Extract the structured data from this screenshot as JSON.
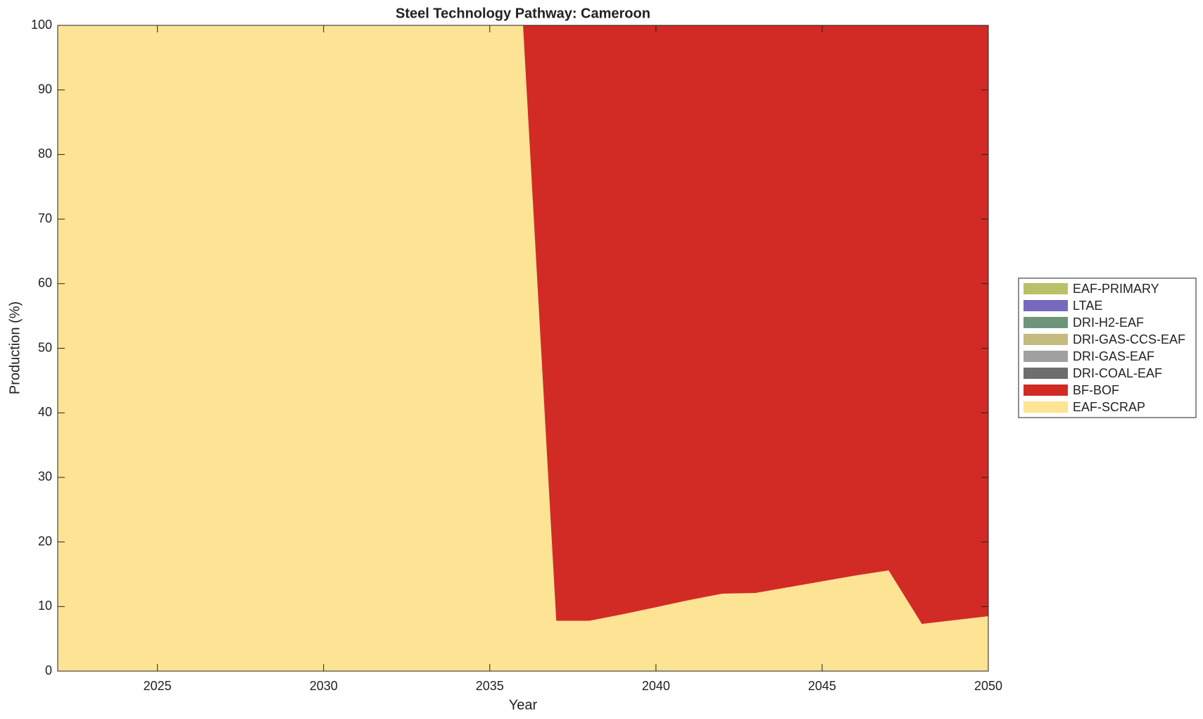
{
  "chart_data": {
    "type": "stacked_area",
    "title": "Steel Technology Pathway: Cameroon",
    "x_label": "Year",
    "y_label": "Production (%)",
    "x": [
      2022,
      2023,
      2024,
      2025,
      2026,
      2027,
      2028,
      2029,
      2030,
      2031,
      2032,
      2033,
      2034,
      2035,
      2036,
      2037,
      2038,
      2039,
      2040,
      2041,
      2042,
      2043,
      2044,
      2045,
      2046,
      2047,
      2048,
      2049,
      2050
    ],
    "xlim": [
      2022,
      2050
    ],
    "xticks": [
      2025,
      2030,
      2035,
      2040,
      2045,
      2050
    ],
    "ylim": [
      0,
      100
    ],
    "yticks": [
      0,
      10,
      20,
      30,
      40,
      50,
      60,
      70,
      80,
      90,
      100
    ],
    "grid": false,
    "legend_position": "right",
    "series": [
      {
        "name": "EAF-SCRAP",
        "color": "#fde394",
        "values": [
          100,
          100,
          100,
          100,
          100,
          100,
          100,
          100,
          100,
          100,
          100,
          100,
          100,
          100,
          100,
          7.8,
          7.8,
          8.8,
          9.9,
          11,
          12,
          12.1,
          13,
          13.9,
          14.8,
          15.6,
          7.3,
          7.9,
          8.5
        ]
      },
      {
        "name": "BF-BOF",
        "color": "#d22b25",
        "values": [
          0,
          0,
          0,
          0,
          0,
          0,
          0,
          0,
          0,
          0,
          0,
          0,
          0,
          0,
          0,
          92.2,
          92.2,
          91.2,
          90.1,
          89,
          88,
          87.9,
          87,
          86.1,
          85.2,
          84.4,
          92.7,
          92.1,
          91.5
        ]
      },
      {
        "name": "DRI-COAL-EAF",
        "color": "#6e6e6e",
        "values": [
          0,
          0,
          0,
          0,
          0,
          0,
          0,
          0,
          0,
          0,
          0,
          0,
          0,
          0,
          0,
          0,
          0,
          0,
          0,
          0,
          0,
          0,
          0,
          0,
          0,
          0,
          0,
          0,
          0
        ]
      },
      {
        "name": "DRI-GAS-EAF",
        "color": "#a0a0a0",
        "values": [
          0,
          0,
          0,
          0,
          0,
          0,
          0,
          0,
          0,
          0,
          0,
          0,
          0,
          0,
          0,
          0,
          0,
          0,
          0,
          0,
          0,
          0,
          0,
          0,
          0,
          0,
          0,
          0,
          0
        ]
      },
      {
        "name": "DRI-GAS-CCS-EAF",
        "color": "#c4bb7e",
        "values": [
          0,
          0,
          0,
          0,
          0,
          0,
          0,
          0,
          0,
          0,
          0,
          0,
          0,
          0,
          0,
          0,
          0,
          0,
          0,
          0,
          0,
          0,
          0,
          0,
          0,
          0,
          0,
          0,
          0
        ]
      },
      {
        "name": "DRI-H2-EAF",
        "color": "#6f947a",
        "values": [
          0,
          0,
          0,
          0,
          0,
          0,
          0,
          0,
          0,
          0,
          0,
          0,
          0,
          0,
          0,
          0,
          0,
          0,
          0,
          0,
          0,
          0,
          0,
          0,
          0,
          0,
          0,
          0,
          0
        ]
      },
      {
        "name": "LTAE",
        "color": "#7669bd",
        "values": [
          0,
          0,
          0,
          0,
          0,
          0,
          0,
          0,
          0,
          0,
          0,
          0,
          0,
          0,
          0,
          0,
          0,
          0,
          0,
          0,
          0,
          0,
          0,
          0,
          0,
          0,
          0,
          0,
          0
        ]
      },
      {
        "name": "EAF-PRIMARY",
        "color": "#b9c168",
        "values": [
          0,
          0,
          0,
          0,
          0,
          0,
          0,
          0,
          0,
          0,
          0,
          0,
          0,
          0,
          0,
          0,
          0,
          0,
          0,
          0,
          0,
          0,
          0,
          0,
          0,
          0,
          0,
          0,
          0
        ]
      }
    ]
  }
}
